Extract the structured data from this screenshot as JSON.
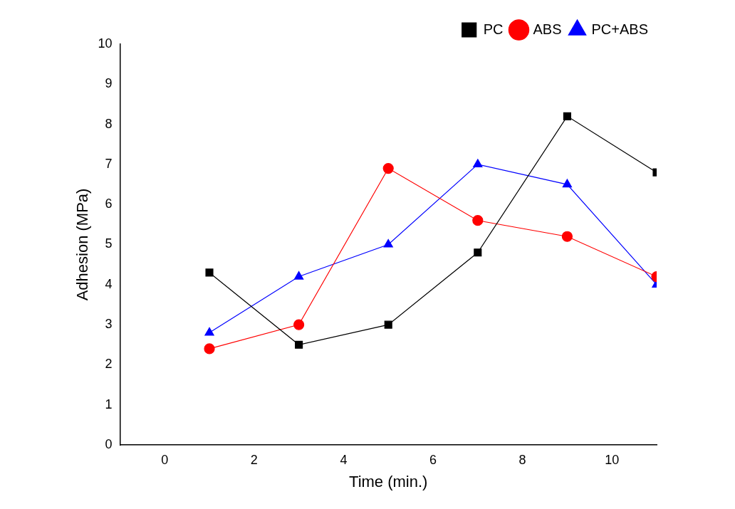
{
  "chart_data": {
    "type": "line",
    "x_label": "Time (min.)",
    "y_label": "Adhesion (MPa)",
    "x": [
      1,
      3,
      5,
      7,
      9,
      11
    ],
    "series": [
      {
        "name": "PC",
        "color": "#000000",
        "marker": "square",
        "line_style": "solid",
        "values": [
          4.3,
          2.5,
          3.0,
          4.8,
          8.2,
          6.8
        ]
      },
      {
        "name": "ABS",
        "color": "#ff0000",
        "marker": "circle",
        "line_style": "solid",
        "values": [
          2.4,
          3.0,
          6.9,
          5.6,
          5.2,
          4.2
        ]
      },
      {
        "name": "PC+ABS",
        "color": "#0000ff",
        "marker": "triangle",
        "line_style": "solid",
        "values": [
          2.8,
          4.2,
          5.0,
          7.0,
          6.5,
          4.0
        ]
      }
    ],
    "xlim": [
      -1,
      11
    ],
    "xticks": [
      0,
      2,
      4,
      6,
      8,
      10
    ],
    "ylim": [
      0,
      10
    ],
    "yticks": [
      0,
      1,
      2,
      3,
      4,
      5,
      6,
      7,
      8,
      9,
      10
    ],
    "grid": false,
    "legend": "upper right"
  }
}
